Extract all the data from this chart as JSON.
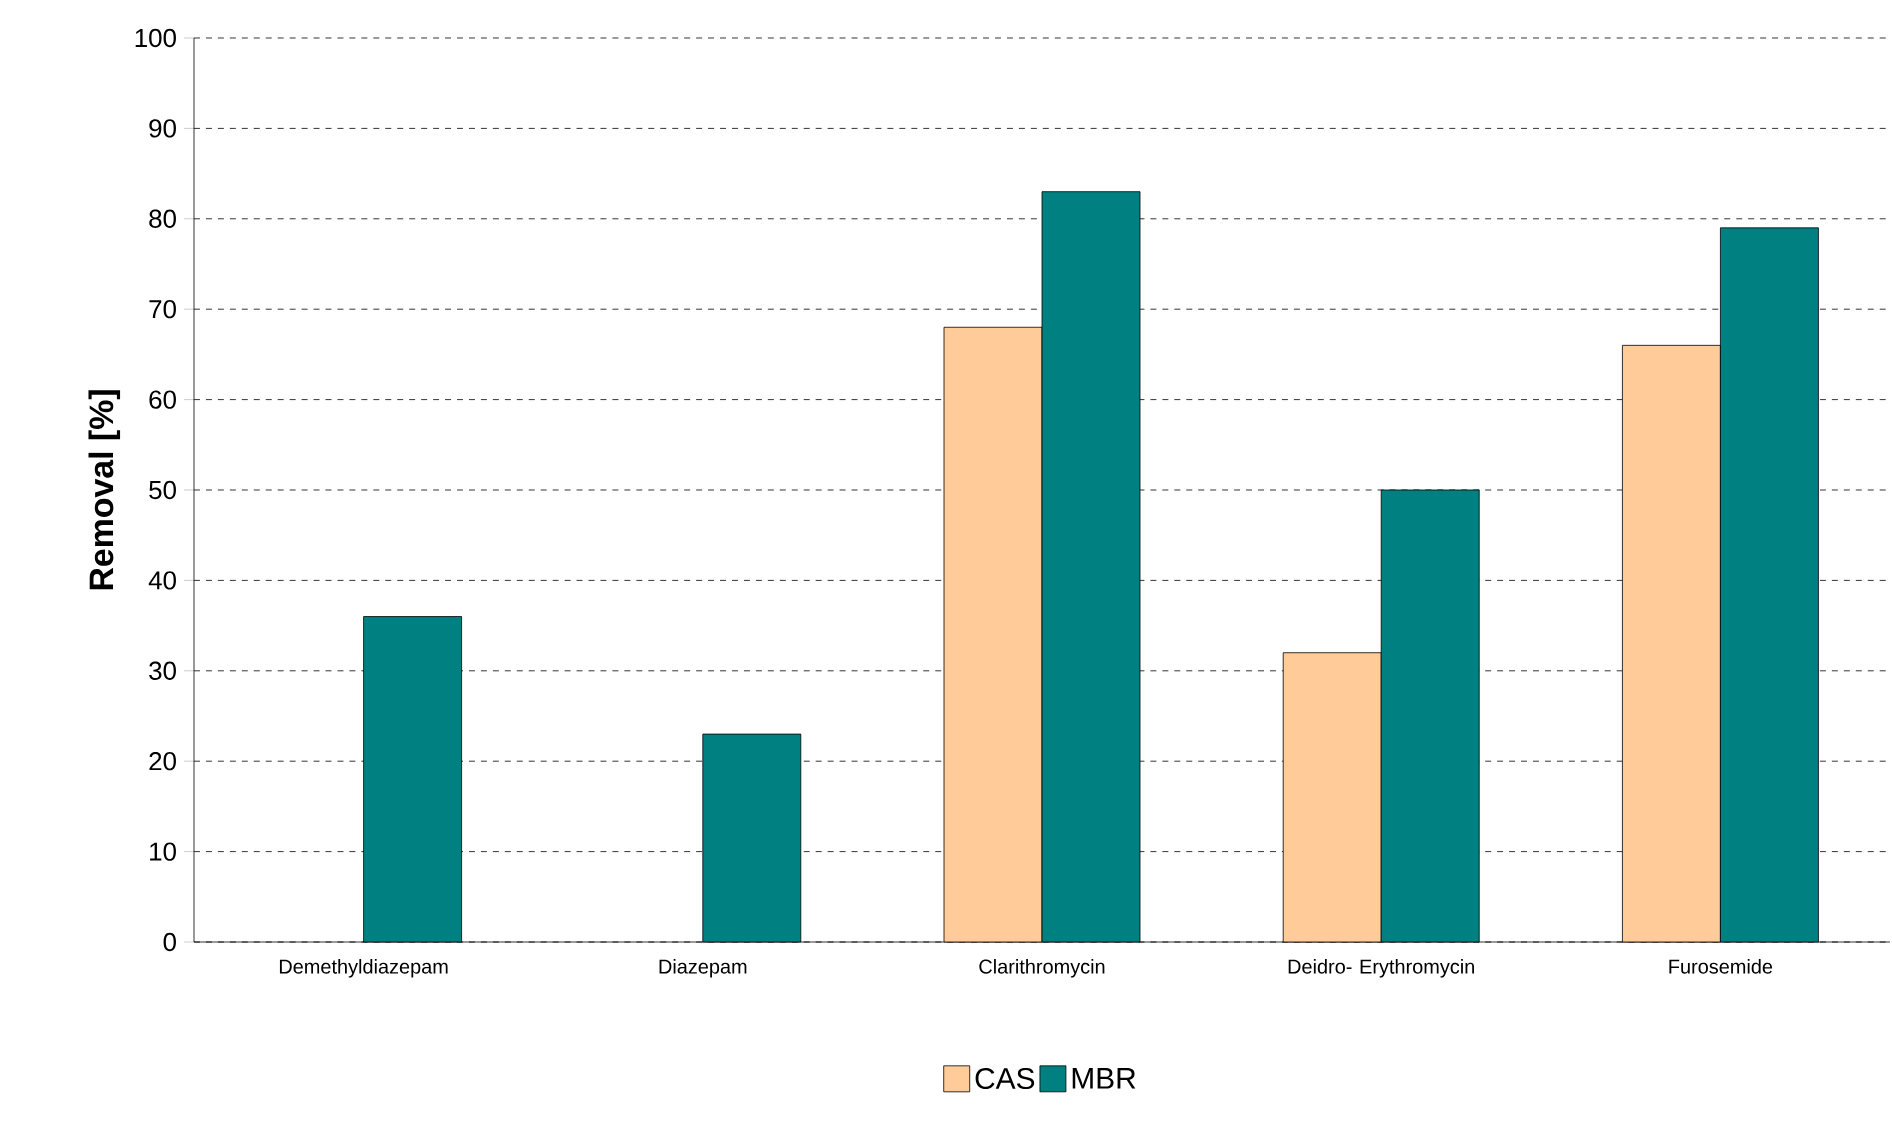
{
  "chart_data": {
    "type": "bar",
    "ylabel": "Removal [%]",
    "categories": [
      "Demethyldiazepam",
      "Diazepam",
      "Clarithromycin",
      "Deidro- Erythromycin",
      "Furosemide"
    ],
    "series": [
      {
        "name": "CAS",
        "color": "#ffcc99",
        "values": [
          null,
          null,
          68,
          32,
          66
        ]
      },
      {
        "name": "MBR",
        "color": "#008080",
        "values": [
          36,
          23,
          83,
          50,
          79
        ]
      }
    ],
    "ylim": [
      0,
      100
    ],
    "yticks": [
      0,
      10,
      20,
      30,
      40,
      50,
      60,
      70,
      80,
      90,
      100
    ],
    "grid": "y",
    "legend": "bottom"
  }
}
